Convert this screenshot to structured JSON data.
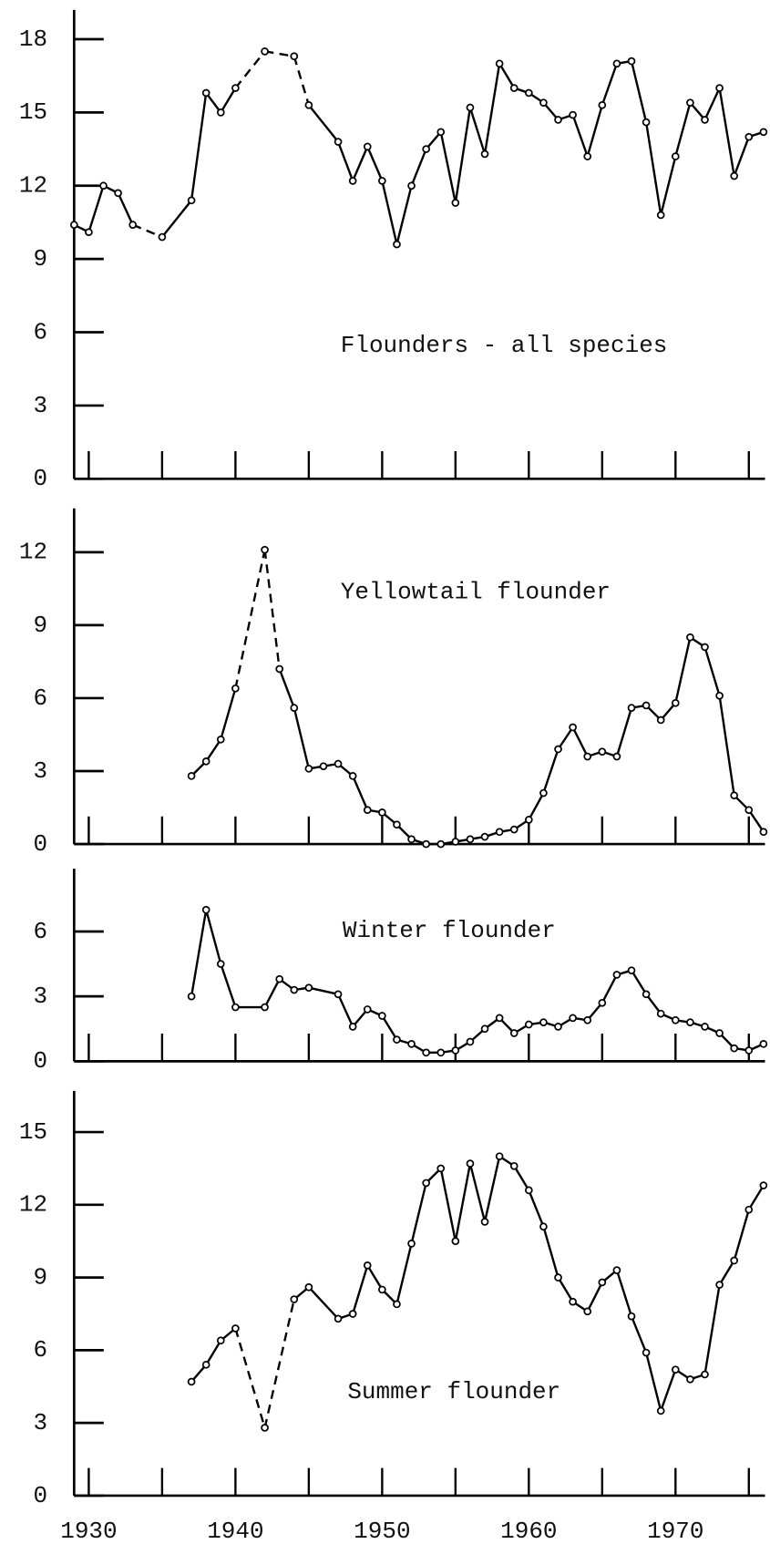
{
  "chart_data": [
    {
      "type": "line",
      "title": "Flounders - all species",
      "color": "#000000",
      "x": [
        1929,
        1930,
        1931,
        1932,
        1933,
        1935,
        1937,
        1938,
        1939,
        1940,
        1942,
        1944,
        1945,
        1947,
        1948,
        1949,
        1950,
        1951,
        1952,
        1953,
        1954,
        1955,
        1956,
        1957,
        1958,
        1959,
        1960,
        1961,
        1962,
        1963,
        1964,
        1965,
        1966,
        1967,
        1968,
        1969,
        1970,
        1971,
        1972,
        1973,
        1974,
        1975,
        1976
      ],
      "values": [
        10.4,
        10.1,
        12.0,
        11.7,
        10.4,
        9.9,
        11.4,
        15.8,
        15.0,
        16.0,
        17.5,
        17.3,
        15.3,
        13.8,
        12.2,
        13.6,
        12.2,
        9.6,
        12.0,
        13.5,
        14.2,
        11.3,
        15.2,
        13.3,
        17.0,
        16.0,
        15.8,
        15.4,
        14.7,
        14.9,
        13.2,
        15.3,
        17.0,
        17.1,
        14.6,
        10.8,
        13.2,
        15.4,
        14.7,
        16.0,
        12.4,
        14.0,
        14.2
      ],
      "dashed_from": [
        1933,
        1940,
        1942,
        1944
      ],
      "xlim": [
        1929,
        1976.1
      ],
      "xticks": [
        1930,
        1935,
        1940,
        1945,
        1950,
        1955,
        1960,
        1965,
        1970,
        1975
      ],
      "ylim": [
        0,
        19.2
      ],
      "yticks": [
        0,
        3,
        6,
        9,
        12,
        15,
        18
      ]
    },
    {
      "type": "line",
      "title": "Yellowtail flounder",
      "color": "#000000",
      "x": [
        1937,
        1938,
        1939,
        1940,
        1942,
        1943,
        1944,
        1945,
        1946,
        1947,
        1948,
        1949,
        1950,
        1951,
        1952,
        1953,
        1954,
        1955,
        1956,
        1957,
        1958,
        1959,
        1960,
        1961,
        1962,
        1963,
        1964,
        1965,
        1966,
        1967,
        1968,
        1969,
        1970,
        1971,
        1972,
        1973,
        1974,
        1975,
        1976
      ],
      "values": [
        2.8,
        3.4,
        4.3,
        6.4,
        12.1,
        7.2,
        5.6,
        3.1,
        3.2,
        3.3,
        2.8,
        1.4,
        1.3,
        0.8,
        0.2,
        0,
        0,
        0.1,
        0.2,
        0.3,
        0.5,
        0.6,
        1.0,
        2.1,
        3.9,
        4.8,
        3.6,
        3.8,
        3.6,
        5.6,
        5.7,
        5.1,
        5.8,
        8.5,
        8.1,
        6.1,
        2.0,
        1.4,
        0.5
      ],
      "dashed_from": [
        1940,
        1942
      ],
      "xlim": [
        1929,
        1976.1
      ],
      "xticks": [
        1930,
        1935,
        1940,
        1945,
        1950,
        1955,
        1960,
        1965,
        1970,
        1975
      ],
      "ylim": [
        0,
        13.8
      ],
      "yticks": [
        0,
        3,
        6,
        9,
        12
      ]
    },
    {
      "type": "line",
      "title": "Winter flounder",
      "color": "#000000",
      "x": [
        1937,
        1938,
        1939,
        1940,
        1942,
        1943,
        1944,
        1945,
        1947,
        1948,
        1949,
        1950,
        1951,
        1952,
        1953,
        1954,
        1955,
        1956,
        1957,
        1958,
        1959,
        1960,
        1961,
        1962,
        1963,
        1964,
        1965,
        1966,
        1967,
        1968,
        1969,
        1970,
        1971,
        1972,
        1973,
        1974,
        1975,
        1976
      ],
      "values": [
        3.0,
        7.0,
        4.5,
        2.5,
        2.5,
        3.8,
        3.3,
        3.4,
        3.1,
        1.6,
        2.4,
        2.1,
        1.0,
        0.8,
        0.4,
        0.4,
        0.5,
        0.9,
        1.5,
        2.0,
        1.3,
        1.7,
        1.8,
        1.6,
        2.0,
        1.9,
        2.7,
        4.0,
        4.2,
        3.1,
        2.2,
        1.9,
        1.8,
        1.6,
        1.3,
        0.6,
        0.5,
        0.8
      ],
      "xlim": [
        1929,
        1976.1
      ],
      "xticks": [
        1930,
        1935,
        1940,
        1945,
        1950,
        1955,
        1960,
        1965,
        1970,
        1975
      ],
      "ylim": [
        0,
        8.9
      ],
      "yticks": [
        0,
        3,
        6
      ]
    },
    {
      "type": "line",
      "title": "Summer flounder",
      "color": "#000000",
      "x": [
        1937,
        1938,
        1939,
        1940,
        1942,
        1944,
        1945,
        1947,
        1948,
        1949,
        1950,
        1951,
        1952,
        1953,
        1954,
        1955,
        1956,
        1957,
        1958,
        1959,
        1960,
        1961,
        1962,
        1963,
        1964,
        1965,
        1966,
        1967,
        1968,
        1969,
        1970,
        1971,
        1972,
        1973,
        1974,
        1975,
        1976
      ],
      "values": [
        4.7,
        5.4,
        6.4,
        6.9,
        2.8,
        8.1,
        8.6,
        7.3,
        7.5,
        9.5,
        8.5,
        7.9,
        10.4,
        12.9,
        13.5,
        10.5,
        13.7,
        11.3,
        14.0,
        13.6,
        12.6,
        11.1,
        9.0,
        8.0,
        7.6,
        8.8,
        9.3,
        7.4,
        5.9,
        3.5,
        5.2,
        4.8,
        5.0,
        8.7,
        9.7,
        11.8,
        12.8
      ],
      "dashed_from": [
        1940,
        1942
      ],
      "xlim": [
        1929,
        1976.1
      ],
      "xticks": [
        1930,
        1935,
        1940,
        1945,
        1950,
        1955,
        1960,
        1965,
        1970,
        1975
      ],
      "xticklabels": [
        1930,
        1940,
        1950,
        1960,
        1970
      ],
      "ylim": [
        0,
        16.7
      ],
      "yticks": [
        0,
        3,
        6,
        9,
        12,
        15
      ]
    }
  ]
}
